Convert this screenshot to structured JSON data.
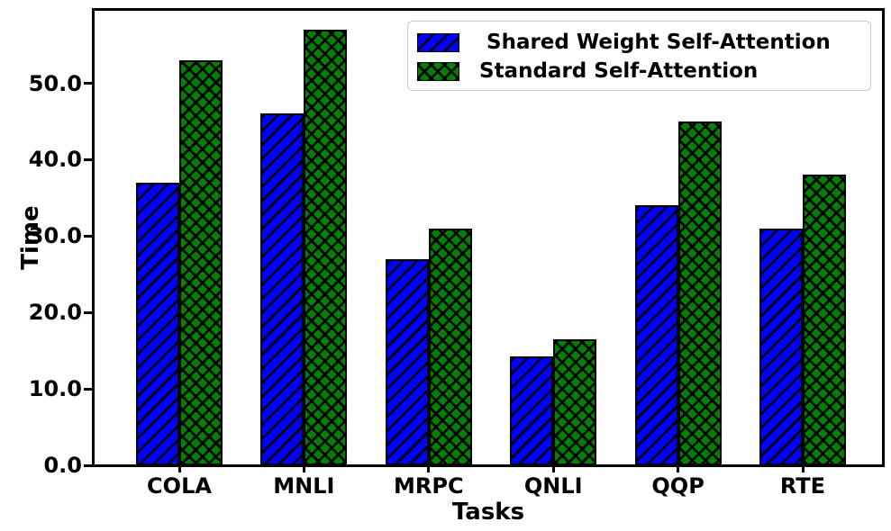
{
  "figure": {
    "background": "#ffffff"
  },
  "chart_data": {
    "type": "bar",
    "title": "",
    "xlabel": "Tasks",
    "ylabel": "Time",
    "categories": [
      "COLA",
      "MNLI",
      "MRPC",
      "QNLI",
      "QQP",
      "RTE"
    ],
    "series": [
      {
        "name": " Shared Weight Self-Attention",
        "color": "#0000ff",
        "hatch": "//",
        "values": [
          37,
          46,
          27,
          14.3,
          34,
          31
        ]
      },
      {
        "name": "Standard Self-Attention",
        "color": "#008000",
        "hatch": "xx",
        "values": [
          53,
          57,
          31,
          16.5,
          45,
          38
        ]
      }
    ],
    "ylim": [
      0,
      59.6
    ],
    "y_ticks": [
      0,
      10,
      20,
      30,
      40,
      50
    ],
    "y_tick_labels": [
      "0.0",
      "10.0",
      "20.0",
      "30.0",
      "40.0",
      "50.0"
    ],
    "grid": false,
    "legend_position": "upper right",
    "bar_edge_color": "#000000",
    "hatch_color": "#000000"
  }
}
